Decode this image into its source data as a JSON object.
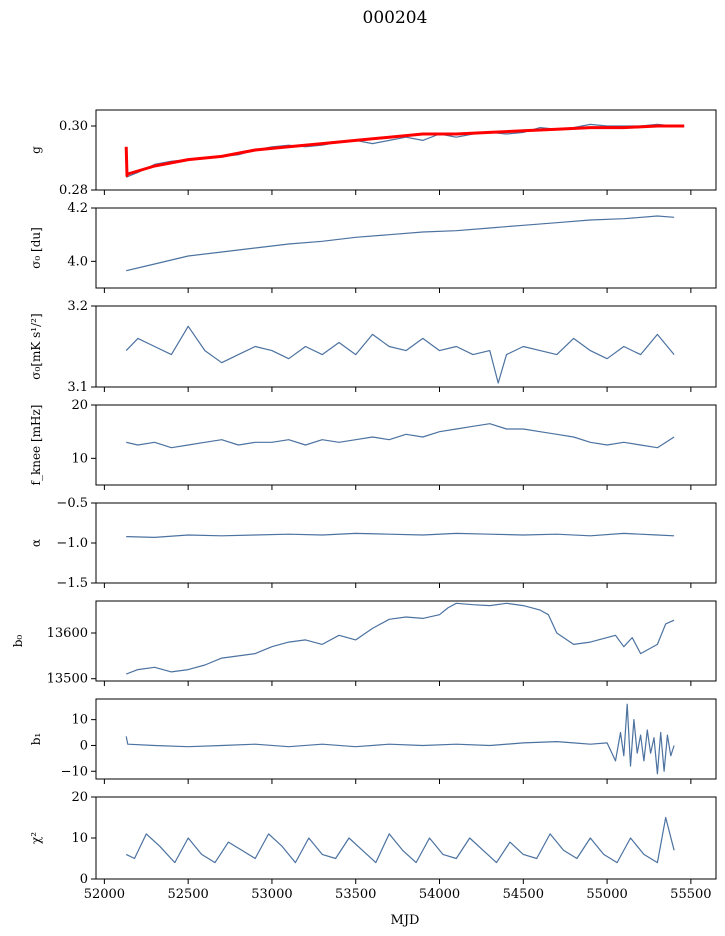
{
  "figure": {
    "title": "000204",
    "xlabel": "MJD"
  },
  "colors": {
    "series": "#4c72a0",
    "fit": "#ff0000",
    "axes": "#000000"
  },
  "chart_data": [
    {
      "type": "line",
      "ylabel": "g",
      "ylim": [
        0.28,
        0.305
      ],
      "yticks": [
        0.28,
        0.3
      ],
      "yticklabels": [
        "0.28",
        "0.30"
      ],
      "xlim": [
        51950,
        55650
      ],
      "xticks": [
        52000,
        52500,
        53000,
        53500,
        54000,
        54500,
        55000,
        55500
      ],
      "series": [
        {
          "x": [
            52130,
            52200,
            52300,
            52400,
            52500,
            52600,
            52700,
            52800,
            52900,
            53000,
            53100,
            53200,
            53300,
            53400,
            53500,
            53600,
            53700,
            53800,
            53900,
            54000,
            54100,
            54200,
            54300,
            54400,
            54500,
            54600,
            54700,
            54800,
            54900,
            55000,
            55100,
            55200,
            55300,
            55400,
            55460
          ],
          "y": [
            0.284,
            0.2855,
            0.288,
            0.289,
            0.2895,
            0.29,
            0.2905,
            0.291,
            0.2925,
            0.2935,
            0.294,
            0.2935,
            0.294,
            0.295,
            0.2955,
            0.2945,
            0.2955,
            0.2965,
            0.2955,
            0.2975,
            0.2965,
            0.2975,
            0.298,
            0.2975,
            0.298,
            0.2995,
            0.299,
            0.2995,
            0.3005,
            0.3,
            0.3,
            0.3,
            0.3005,
            0.3,
            0.3
          ]
        },
        {
          "x": [
            52130,
            52135,
            52140,
            52300,
            52500,
            52700,
            52900,
            53100,
            53300,
            53500,
            53700,
            53900,
            54100,
            54300,
            54500,
            54700,
            54900,
            55100,
            55300,
            55460
          ],
          "y": [
            0.2935,
            0.2845,
            0.285,
            0.2875,
            0.2895,
            0.2905,
            0.2925,
            0.2935,
            0.2945,
            0.2955,
            0.2965,
            0.2975,
            0.2975,
            0.298,
            0.2985,
            0.299,
            0.2995,
            0.2995,
            0.3,
            0.3
          ]
        }
      ]
    },
    {
      "type": "line",
      "ylabel": "σ₀ [du]",
      "ylim": [
        3.9,
        4.2
      ],
      "yticks": [
        4.0,
        4.2
      ],
      "yticklabels": [
        "4.0",
        "4.2"
      ],
      "xlim": [
        51950,
        55650
      ],
      "xticks": [
        52000,
        52500,
        53000,
        53500,
        54000,
        54500,
        55000,
        55500
      ],
      "series": [
        {
          "x": [
            52130,
            52300,
            52500,
            52700,
            52900,
            53100,
            53300,
            53500,
            53700,
            53900,
            54100,
            54300,
            54500,
            54700,
            54900,
            55100,
            55300,
            55400
          ],
          "y": [
            3.965,
            3.99,
            4.02,
            4.035,
            4.05,
            4.065,
            4.075,
            4.09,
            4.1,
            4.11,
            4.115,
            4.125,
            4.135,
            4.145,
            4.155,
            4.16,
            4.17,
            4.165
          ]
        }
      ]
    },
    {
      "type": "line",
      "ylabel": "σ₀[mK s¹/²]",
      "ylim": [
        3.1,
        3.2
      ],
      "yticks": [
        3.1,
        3.2
      ],
      "yticklabels": [
        "3.1",
        "3.2"
      ],
      "xlim": [
        51950,
        55650
      ],
      "xticks": [
        52000,
        52500,
        53000,
        53500,
        54000,
        54500,
        55000,
        55500
      ],
      "series": [
        {
          "x": [
            52130,
            52200,
            52300,
            52400,
            52500,
            52600,
            52700,
            52800,
            52900,
            53000,
            53100,
            53200,
            53300,
            53400,
            53500,
            53600,
            53700,
            53800,
            53900,
            54000,
            54100,
            54200,
            54300,
            54350,
            54400,
            54500,
            54600,
            54700,
            54800,
            54900,
            55000,
            55100,
            55200,
            55300,
            55400
          ],
          "y": [
            3.145,
            3.16,
            3.15,
            3.14,
            3.175,
            3.145,
            3.13,
            3.14,
            3.15,
            3.145,
            3.135,
            3.15,
            3.14,
            3.155,
            3.14,
            3.165,
            3.15,
            3.145,
            3.16,
            3.145,
            3.15,
            3.14,
            3.145,
            3.105,
            3.14,
            3.15,
            3.145,
            3.14,
            3.16,
            3.145,
            3.135,
            3.15,
            3.14,
            3.165,
            3.14
          ]
        }
      ]
    },
    {
      "type": "line",
      "ylabel": "f_knee [mHz]",
      "ylim": [
        5,
        20
      ],
      "yticks": [
        10,
        20
      ],
      "yticklabels": [
        "10",
        "20"
      ],
      "xlim": [
        51950,
        55650
      ],
      "xticks": [
        52000,
        52500,
        53000,
        53500,
        54000,
        54500,
        55000,
        55500
      ],
      "series": [
        {
          "x": [
            52130,
            52200,
            52300,
            52400,
            52500,
            52600,
            52700,
            52800,
            52900,
            53000,
            53100,
            53200,
            53300,
            53400,
            53500,
            53600,
            53700,
            53800,
            53900,
            54000,
            54100,
            54200,
            54300,
            54400,
            54500,
            54600,
            54700,
            54800,
            54900,
            55000,
            55100,
            55200,
            55300,
            55400
          ],
          "y": [
            13,
            12.5,
            13,
            12,
            12.5,
            13,
            13.5,
            12.5,
            13,
            13,
            13.5,
            12.5,
            13.5,
            13,
            13.5,
            14,
            13.5,
            14.5,
            14,
            15,
            15.5,
            16,
            16.5,
            15.5,
            15.5,
            15,
            14.5,
            14,
            13,
            12.5,
            13,
            12.5,
            12,
            14
          ]
        }
      ]
    },
    {
      "type": "line",
      "ylabel": "α",
      "ylim": [
        -1.5,
        -0.5
      ],
      "yticks": [
        -1.5,
        -1.0,
        -0.5
      ],
      "yticklabels": [
        "−1.5",
        "−1.0",
        "−0.5"
      ],
      "xlim": [
        51950,
        55650
      ],
      "xticks": [
        52000,
        52500,
        53000,
        53500,
        54000,
        54500,
        55000,
        55500
      ],
      "series": [
        {
          "x": [
            52130,
            52300,
            52500,
            52700,
            52900,
            53100,
            53300,
            53500,
            53700,
            53900,
            54100,
            54300,
            54500,
            54700,
            54900,
            55100,
            55300,
            55400
          ],
          "y": [
            -0.92,
            -0.93,
            -0.9,
            -0.91,
            -0.9,
            -0.89,
            -0.9,
            -0.88,
            -0.89,
            -0.9,
            -0.88,
            -0.89,
            -0.9,
            -0.89,
            -0.91,
            -0.88,
            -0.9,
            -0.91
          ]
        }
      ]
    },
    {
      "type": "line",
      "ylabel": "b₀",
      "ylim": [
        13495,
        13670
      ],
      "yticks": [
        13500,
        13600
      ],
      "yticklabels": [
        "13500",
        "13600"
      ],
      "xlim": [
        51950,
        55650
      ],
      "xticks": [
        52000,
        52500,
        53000,
        53500,
        54000,
        54500,
        55000,
        55500
      ],
      "series": [
        {
          "x": [
            52130,
            52200,
            52300,
            52400,
            52500,
            52600,
            52700,
            52800,
            52900,
            53000,
            53100,
            53200,
            53300,
            53400,
            53500,
            53600,
            53700,
            53800,
            53900,
            54000,
            54050,
            54100,
            54200,
            54300,
            54400,
            54500,
            54600,
            54650,
            54700,
            54800,
            54900,
            55000,
            55050,
            55100,
            55150,
            55200,
            55250,
            55300,
            55350,
            55400
          ],
          "y": [
            13510,
            13520,
            13525,
            13515,
            13520,
            13530,
            13545,
            13550,
            13555,
            13570,
            13580,
            13585,
            13575,
            13595,
            13585,
            13610,
            13630,
            13635,
            13632,
            13640,
            13655,
            13665,
            13662,
            13660,
            13665,
            13660,
            13650,
            13640,
            13600,
            13575,
            13580,
            13590,
            13595,
            13570,
            13590,
            13555,
            13565,
            13575,
            13620,
            13628
          ]
        }
      ]
    },
    {
      "type": "line",
      "ylabel": "b₁",
      "ylim": [
        -13,
        18
      ],
      "yticks": [
        -10,
        0,
        10
      ],
      "yticklabels": [
        "−10",
        "0",
        "10"
      ],
      "xlim": [
        51950,
        55650
      ],
      "xticks": [
        52000,
        52500,
        53000,
        53500,
        54000,
        54500,
        55000,
        55500
      ],
      "series": [
        {
          "x": [
            52130,
            52140,
            52300,
            52500,
            52700,
            52900,
            53100,
            53300,
            53500,
            53700,
            53900,
            54100,
            54300,
            54500,
            54700,
            54800,
            54900,
            55000,
            55050,
            55080,
            55100,
            55120,
            55140,
            55160,
            55180,
            55200,
            55220,
            55240,
            55260,
            55280,
            55300,
            55320,
            55340,
            55360,
            55380,
            55400
          ],
          "y": [
            3.5,
            0.5,
            0,
            -0.5,
            0,
            0.5,
            -0.5,
            0.5,
            -0.5,
            0.5,
            0,
            0.5,
            0,
            1,
            1.5,
            1,
            0.5,
            1,
            -6,
            5,
            -4,
            16,
            -8,
            10,
            -3,
            4,
            -6,
            6,
            -3,
            3,
            -11,
            5,
            -10,
            4,
            -4,
            0
          ]
        }
      ]
    },
    {
      "type": "line",
      "ylabel": "χ²",
      "ylim": [
        0,
        20
      ],
      "yticks": [
        0,
        10,
        20
      ],
      "yticklabels": [
        "0",
        "10",
        "20"
      ],
      "xlim": [
        51950,
        55650
      ],
      "xticks": [
        52000,
        52500,
        53000,
        53500,
        54000,
        54500,
        55000,
        55500
      ],
      "xticklabels": [
        "52000",
        "52500",
        "53000",
        "53500",
        "54000",
        "54500",
        "55000",
        "55500"
      ],
      "series": [
        {
          "x": [
            52130,
            52180,
            52250,
            52330,
            52420,
            52500,
            52580,
            52660,
            52740,
            52820,
            52900,
            52980,
            53060,
            53140,
            53220,
            53300,
            53380,
            53460,
            53540,
            53620,
            53700,
            53780,
            53860,
            53940,
            54020,
            54100,
            54180,
            54260,
            54340,
            54420,
            54500,
            54580,
            54660,
            54740,
            54820,
            54900,
            54980,
            55060,
            55140,
            55220,
            55300,
            55350,
            55400
          ],
          "y": [
            6,
            5,
            11,
            8,
            4,
            10,
            6,
            4,
            9,
            7,
            5,
            11,
            8,
            4,
            10,
            6,
            5,
            10,
            7,
            4,
            11,
            7,
            4,
            10,
            6,
            5,
            10,
            7,
            4,
            9,
            6,
            5,
            11,
            7,
            5,
            10,
            6,
            4,
            10,
            6,
            4,
            15,
            7
          ]
        }
      ]
    }
  ]
}
